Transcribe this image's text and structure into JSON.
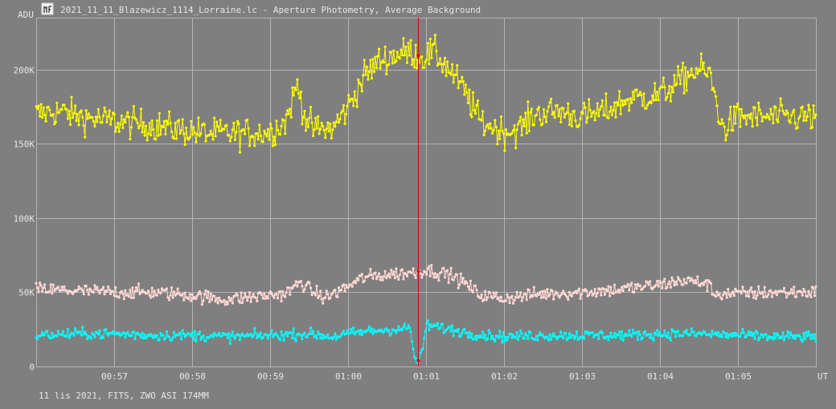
{
  "window": {
    "title": "2021_11_11_Blazewicz_1114_Lorraine.lc - Aperture Photometry, Average Background",
    "app_icon": "aperture-photometry-icon"
  },
  "footer": {
    "info": "11 lis 2021, FITS, ZWO ASI 174MM"
  },
  "colors": {
    "background": "#7f7f7f",
    "grid": "#b4b4b4",
    "axis_text": "#e6e6e6",
    "cursor": "#e00000",
    "series_1": "#ffff00",
    "series_2": "#ffd8d4",
    "series_3": "#00ffff"
  },
  "chart_data": {
    "type": "line",
    "title": "",
    "ylabel": "ADU",
    "xlabel": "UT",
    "ylim": [
      0,
      235000
    ],
    "xlim_minutes": [
      56.0,
      66.0
    ],
    "y_ticks": [
      {
        "value": 0,
        "label": "0"
      },
      {
        "value": 50000,
        "label": "50K"
      },
      {
        "value": 100000,
        "label": "100K"
      },
      {
        "value": 150000,
        "label": "150K"
      },
      {
        "value": 200000,
        "label": "200K"
      }
    ],
    "x_ticks": [
      {
        "value": 57,
        "label": "00:57"
      },
      {
        "value": 58,
        "label": "00:58"
      },
      {
        "value": 59,
        "label": "00:59"
      },
      {
        "value": 60,
        "label": "01:00"
      },
      {
        "value": 61,
        "label": "01:01"
      },
      {
        "value": 62,
        "label": "01:02"
      },
      {
        "value": 63,
        "label": "01:03"
      },
      {
        "value": 64,
        "label": "01:04"
      },
      {
        "value": 65,
        "label": "01:05"
      }
    ],
    "cursor_x": 60.9,
    "grid": true,
    "series": [
      {
        "color": "#ffff00",
        "noise": 10000,
        "x": [
          56.0,
          56.3,
          56.6,
          57.0,
          57.4,
          57.8,
          58.2,
          58.6,
          59.0,
          59.2,
          59.35,
          59.45,
          59.55,
          59.8,
          60.0,
          60.2,
          60.4,
          60.6,
          60.8,
          60.95,
          61.1,
          61.3,
          61.5,
          61.7,
          62.0,
          62.2,
          62.4,
          62.7,
          63.0,
          63.3,
          63.6,
          64.0,
          64.2,
          64.4,
          64.55,
          64.65,
          64.8,
          65.0,
          65.5,
          66.0
        ],
        "y": [
          170000,
          172000,
          168000,
          165000,
          163000,
          160000,
          157000,
          157000,
          158000,
          165000,
          190000,
          168000,
          160000,
          160000,
          175000,
          195000,
          206000,
          210000,
          212000,
          208000,
          212000,
          200000,
          185000,
          165000,
          158000,
          160000,
          170000,
          172000,
          168000,
          172000,
          180000,
          183000,
          190000,
          198000,
          200000,
          195000,
          160000,
          168000,
          168000,
          168000
        ]
      },
      {
        "color": "#ffd8d4",
        "noise": 4500,
        "x": [
          56.0,
          56.5,
          57.0,
          57.5,
          58.0,
          58.4,
          58.8,
          59.2,
          59.4,
          59.5,
          59.7,
          60.0,
          60.2,
          60.5,
          60.8,
          60.9,
          61.0,
          61.3,
          61.5,
          61.7,
          62.0,
          62.5,
          63.0,
          63.5,
          64.0,
          64.3,
          64.6,
          64.7,
          65.0,
          65.5,
          66.0
        ],
        "y": [
          52000,
          51000,
          50000,
          50000,
          48000,
          45000,
          47000,
          49000,
          57000,
          52000,
          46000,
          54000,
          60000,
          62000,
          63000,
          64000,
          65000,
          62000,
          56000,
          48000,
          46000,
          49000,
          50000,
          52000,
          55000,
          58000,
          56000,
          49000,
          49000,
          50000,
          50000
        ]
      },
      {
        "color": "#00ffff",
        "noise": 3500,
        "x": [
          56.0,
          56.5,
          57.0,
          57.5,
          58.0,
          58.5,
          59.0,
          59.5,
          59.8,
          60.0,
          60.3,
          60.6,
          60.8,
          60.85,
          60.9,
          60.95,
          61.0,
          61.3,
          61.6,
          62.0,
          62.5,
          63.0,
          63.5,
          64.0,
          64.5,
          65.0,
          65.5,
          66.0
        ],
        "y": [
          21000,
          22000,
          22000,
          21000,
          21000,
          20000,
          21000,
          22000,
          20000,
          22000,
          24000,
          25000,
          26000,
          5000,
          4000,
          8000,
          28000,
          25000,
          22000,
          20000,
          21000,
          21000,
          21000,
          22000,
          22000,
          21000,
          20000,
          20000
        ]
      }
    ]
  }
}
